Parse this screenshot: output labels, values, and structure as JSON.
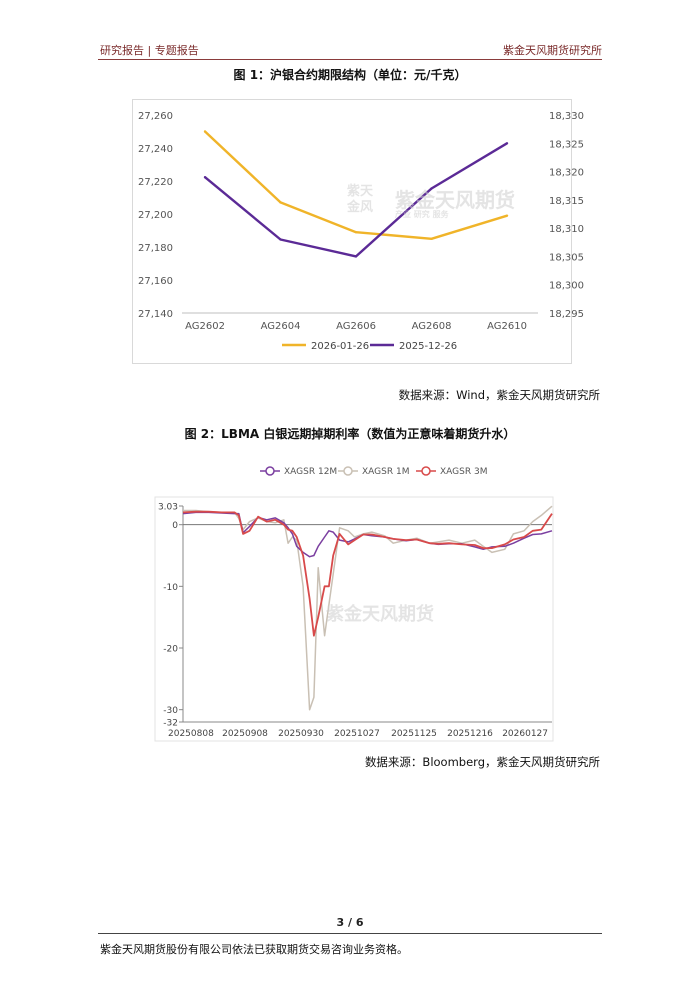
{
  "header": {
    "left": "研究报告 | 专题报告",
    "right": "紫金天风期货研究所"
  },
  "figure1": {
    "title": "图 1：沪银合约期限结构（单位：元/千克）",
    "source": "数据来源：Wind，紫金天风期货研究所"
  },
  "figure2": {
    "title": "图 2：LBMA 白银远期掉期利率（数值为正意味着期货升水）",
    "source": "数据来源：Bloomberg，紫金天风期货研究所"
  },
  "watermark": {
    "brand": "紫金天风期货",
    "seal": "紫天金风",
    "tagline": "产业 研究 服务"
  },
  "footer": {
    "page": "3 / 6",
    "text": "紫金天风期货股份有限公司依法已获取期货交易咨询业务资格。"
  },
  "colors": {
    "accent": "#7a2a2a",
    "gold": "#f0b429",
    "purple": "#5b2a96",
    "c12m": "#7b3fa0",
    "c1m": "#c9c0b4",
    "c3m": "#d84a4a"
  },
  "chart_data": [
    {
      "type": "line",
      "categories": [
        "AG2602",
        "AG2604",
        "AG2606",
        "AG2608",
        "AG2610"
      ],
      "series": [
        {
          "name": "2026-01-26",
          "axis": "left",
          "values": [
            27250,
            27207,
            27189,
            27185,
            27199
          ]
        },
        {
          "name": "2025-12-26",
          "axis": "right",
          "values": [
            18319,
            18308,
            18305,
            18317,
            18325
          ]
        }
      ],
      "ylim_left": [
        27140,
        27260
      ],
      "ylim_right": [
        18295,
        18330
      ],
      "yticks_left": [
        "27,260",
        "27,240",
        "27,220",
        "27,200",
        "27,180",
        "27,160",
        "27,140"
      ],
      "yticks_right": [
        "18,330",
        "18,325",
        "18,320",
        "18,315",
        "18,310",
        "18,305",
        "18,300",
        "18,295"
      ],
      "legend": "bottom"
    },
    {
      "type": "line",
      "x": [
        "2025-08-08",
        "2025-08-14",
        "2025-08-20",
        "2025-08-26",
        "2025-09-01",
        "2025-09-03",
        "2025-09-05",
        "2025-09-08",
        "2025-09-12",
        "2025-09-16",
        "2025-09-20",
        "2025-09-24",
        "2025-09-26",
        "2025-09-28",
        "2025-09-30",
        "2025-10-03",
        "2025-10-06",
        "2025-10-08",
        "2025-10-10",
        "2025-10-13",
        "2025-10-15",
        "2025-10-17",
        "2025-10-20",
        "2025-10-24",
        "2025-10-27",
        "2025-10-31",
        "2025-11-04",
        "2025-11-10",
        "2025-11-14",
        "2025-11-20",
        "2025-11-25",
        "2025-12-01",
        "2025-12-05",
        "2025-12-10",
        "2025-12-16",
        "2025-12-22",
        "2025-12-26",
        "2025-12-30",
        "2026-01-05",
        "2026-01-09",
        "2026-01-14",
        "2026-01-18",
        "2026-01-22",
        "2026-01-27"
      ],
      "series": [
        {
          "name": "XAGSR 12M",
          "values": [
            1.8,
            2.0,
            2.0,
            1.9,
            1.8,
            1.8,
            -1.3,
            -0.3,
            1.2,
            0.8,
            1.1,
            0.3,
            -0.5,
            -1.5,
            -3.5,
            -4.5,
            -5.2,
            -5.0,
            -3.5,
            -2.0,
            -1.0,
            -1.2,
            -2.5,
            -2.8,
            -2.3,
            -1.6,
            -1.8,
            -2.0,
            -2.3,
            -2.6,
            -2.4,
            -3.0,
            -3.2,
            -3.1,
            -3.1,
            -3.6,
            -4.0,
            -3.6,
            -3.5,
            -3.0,
            -2.2,
            -1.6,
            -1.5,
            -1.0
          ]
        },
        {
          "name": "XAGSR 1M",
          "values": [
            2.3,
            2.3,
            2.1,
            2.0,
            2.0,
            1.0,
            -0.8,
            0.5,
            1.1,
            0.5,
            0.3,
            0.8,
            -3.0,
            -2.0,
            -2.5,
            -10.0,
            -30.0,
            -28.0,
            -7.0,
            -18.0,
            -13.0,
            -8.0,
            -0.5,
            -1.0,
            -2.0,
            -1.5,
            -1.2,
            -1.8,
            -3.0,
            -2.5,
            -2.2,
            -3.0,
            -2.8,
            -2.5,
            -3.0,
            -2.5,
            -3.5,
            -4.5,
            -4.0,
            -1.5,
            -1.0,
            0.5,
            1.5,
            3.0
          ]
        },
        {
          "name": "XAGSR 3M",
          "values": [
            2.0,
            2.1,
            2.1,
            2.0,
            2.0,
            1.5,
            -1.5,
            -1.0,
            1.3,
            0.5,
            0.8,
            0.0,
            -0.8,
            -1.0,
            -2.0,
            -5.0,
            -12.0,
            -18.0,
            -15.0,
            -10.0,
            -10.0,
            -5.0,
            -1.5,
            -3.2,
            -2.5,
            -1.6,
            -1.6,
            -2.0,
            -2.3,
            -2.5,
            -2.4,
            -3.0,
            -3.1,
            -3.0,
            -3.2,
            -3.3,
            -3.8,
            -3.8,
            -3.2,
            -2.4,
            -2.0,
            -1.0,
            -0.8,
            1.8
          ]
        }
      ],
      "xticks": [
        "20250808",
        "20250908",
        "20250930",
        "20251027",
        "20251125",
        "20251216",
        "20260127"
      ],
      "yticks": [
        "3.03",
        "0",
        "-10",
        "-20",
        "-30",
        "-32"
      ],
      "ylim": [
        -32,
        3.03
      ],
      "legend": "top"
    }
  ]
}
